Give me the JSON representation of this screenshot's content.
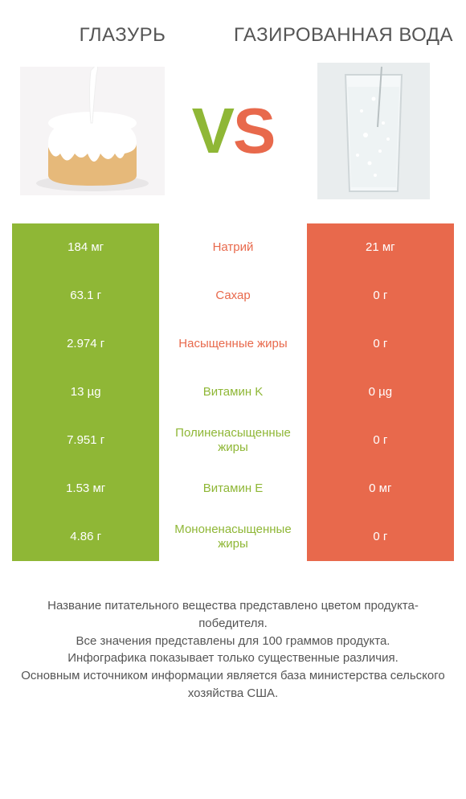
{
  "titles": {
    "left": "ГЛАЗУРЬ",
    "right": "ГАЗИРОВАННАЯ ВОДА"
  },
  "vs": {
    "v": "V",
    "s": "S"
  },
  "colors": {
    "left": "#8fb736",
    "right": "#e8694c",
    "background": "#ffffff",
    "text": "#555555"
  },
  "rows": [
    {
      "left": "184 мг",
      "label": "Натрий",
      "right": "21 мг",
      "winner": "right"
    },
    {
      "left": "63.1 г",
      "label": "Сахар",
      "right": "0 г",
      "winner": "right"
    },
    {
      "left": "2.974 г",
      "label": "Насыщенные жиры",
      "right": "0 г",
      "winner": "right"
    },
    {
      "left": "13 µg",
      "label": "Витамин K",
      "right": "0 µg",
      "winner": "left"
    },
    {
      "left": "7.951 г",
      "label": "Полиненасыщенные жиры",
      "right": "0 г",
      "winner": "left"
    },
    {
      "left": "1.53 мг",
      "label": "Витамин E",
      "right": "0 мг",
      "winner": "left"
    },
    {
      "left": "4.86 г",
      "label": "Мононенасыщенные жиры",
      "right": "0 г",
      "winner": "left"
    }
  ],
  "footer": {
    "line1": "Название питательного вещества представлено цветом продукта-победителя.",
    "line2": "Все значения представлены для 100 граммов продукта.",
    "line3": "Инфографика показывает только существенные различия.",
    "line4": "Основным источником информации является база министерства сельского хозяйства США."
  }
}
